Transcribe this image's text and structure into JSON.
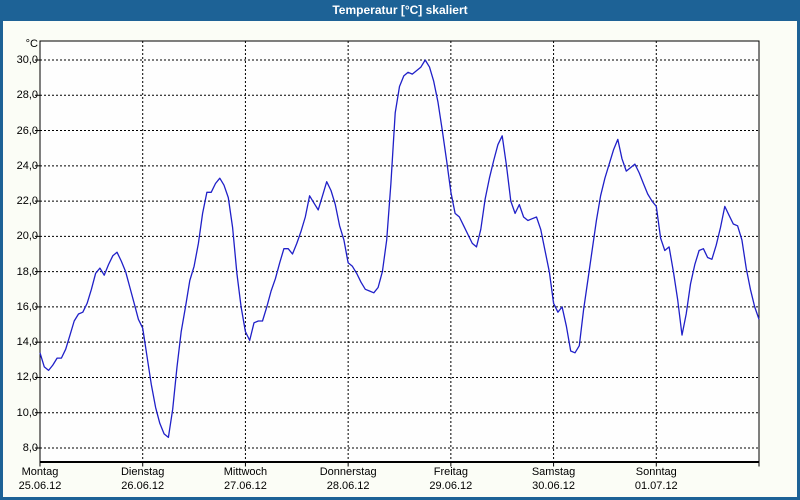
{
  "window": {
    "title": "Temperatur [°C] skaliert"
  },
  "colors": {
    "titlebar_bg": "#1d6296",
    "titlebar_text": "#ffffff",
    "frame": "#1d6296",
    "window_bg": "#fbfdf6",
    "plot_bg": "#fefefe",
    "grid": "#000000",
    "axis": "#000000",
    "line": "#2020c8",
    "text": "#000000"
  },
  "chart_data": {
    "type": "line",
    "title": "Temperatur [°C] skaliert",
    "xlabel": "",
    "ylabel": "°C",
    "grid": "dashed",
    "legend": "none",
    "ylim": [
      7.2,
      31.1
    ],
    "y_ticks": [
      30,
      28,
      26,
      24,
      22,
      20,
      18,
      16,
      14,
      12,
      10,
      8
    ],
    "y_tick_labels": [
      "30,0",
      "28,0",
      "26,0",
      "24,0",
      "22,0",
      "20,0",
      "18,0",
      "16,0",
      "14,0",
      "12,0",
      "10,0",
      "8,0"
    ],
    "x_range_hours": 168,
    "x_day_labels": [
      {
        "name": "Montag",
        "date": "25.06.12"
      },
      {
        "name": "Dienstag",
        "date": "26.06.12"
      },
      {
        "name": "Mittwoch",
        "date": "27.06.12"
      },
      {
        "name": "Donnerstag",
        "date": "28.06.12"
      },
      {
        "name": "Freitag",
        "date": "29.06.12"
      },
      {
        "name": "Samstag",
        "date": "30.06.12"
      },
      {
        "name": "Sonntag",
        "date": "01.07.12"
      }
    ],
    "series": [
      {
        "name": "Temperatur",
        "unit": "°C",
        "sample_interval_hours": 1,
        "values": [
          13.4,
          12.6,
          12.4,
          12.7,
          13.1,
          13.1,
          13.6,
          14.4,
          15.2,
          15.6,
          15.7,
          16.2,
          17.0,
          17.9,
          18.2,
          17.8,
          18.4,
          18.9,
          19.1,
          18.6,
          18.0,
          17.1,
          16.2,
          15.3,
          14.8,
          13.2,
          11.6,
          10.3,
          9.4,
          8.8,
          8.6,
          10.2,
          12.6,
          14.6,
          16.0,
          17.5,
          18.3,
          19.6,
          21.3,
          22.5,
          22.5,
          23.0,
          23.3,
          22.9,
          22.2,
          20.5,
          17.9,
          16.0,
          14.6,
          14.1,
          15.1,
          15.2,
          15.2,
          16.0,
          16.9,
          17.6,
          18.5,
          19.3,
          19.3,
          19.0,
          19.6,
          20.3,
          21.1,
          22.3,
          21.9,
          21.5,
          22.3,
          23.1,
          22.6,
          21.8,
          20.6,
          19.8,
          18.5,
          18.3,
          17.9,
          17.4,
          17.0,
          16.9,
          16.8,
          17.1,
          18.0,
          19.8,
          23.0,
          27.0,
          28.5,
          29.1,
          29.3,
          29.2,
          29.4,
          29.6,
          30.0,
          29.6,
          28.8,
          27.6,
          26.0,
          24.3,
          22.5,
          21.3,
          21.1,
          20.6,
          20.1,
          19.6,
          19.4,
          20.4,
          22.1,
          23.3,
          24.3,
          25.2,
          25.7,
          24.0,
          22.0,
          21.3,
          21.8,
          21.1,
          20.9,
          21.0,
          21.1,
          20.4,
          19.2,
          18.0,
          16.2,
          15.7,
          16.0,
          14.9,
          13.5,
          13.4,
          13.8,
          15.8,
          17.5,
          19.2,
          20.9,
          22.3,
          23.3,
          24.1,
          24.9,
          25.5,
          24.4,
          23.7,
          23.9,
          24.1,
          23.6,
          23.0,
          22.4,
          22.0,
          21.7,
          19.9,
          19.2,
          19.4,
          18.0,
          16.4,
          14.4,
          15.6,
          17.3,
          18.4,
          19.2,
          19.3,
          18.8,
          18.7,
          19.5,
          20.5,
          21.7,
          21.2,
          20.7,
          20.6,
          19.8,
          18.2,
          17.0,
          16.0,
          15.3
        ]
      }
    ]
  }
}
